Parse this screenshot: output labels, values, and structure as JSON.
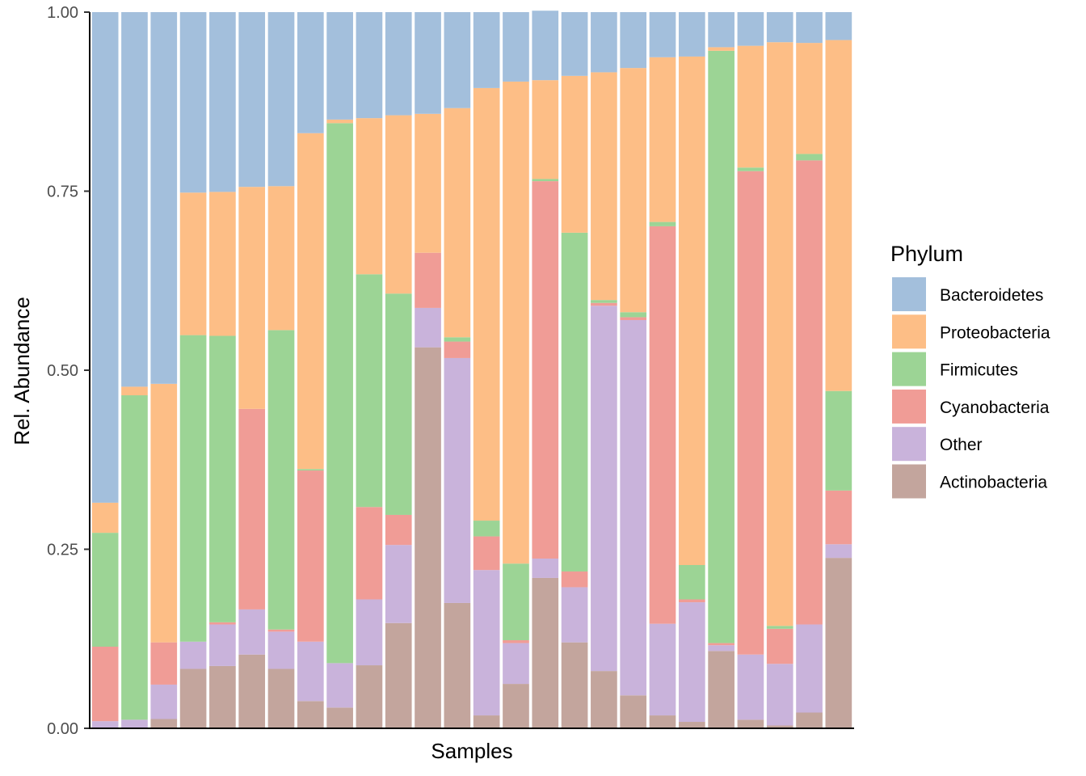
{
  "chart_data": {
    "type": "bar",
    "stacked": true,
    "title": "",
    "xlabel": "Samples",
    "ylabel": "Rel. Abundance",
    "ylim": [
      0,
      1
    ],
    "yticks": [
      "0.00",
      "0.25",
      "0.50",
      "0.75",
      "1.00"
    ],
    "x_tick_labels_visible": false,
    "grid": false,
    "legend_title": "Phylum",
    "legend_position": "right",
    "stack_order_bottom_to_top": [
      "Actinobacteria",
      "Other",
      "Cyanobacteria",
      "Firmicutes",
      "Proteobacteria",
      "Bacteroidetes"
    ],
    "legend_order": [
      "Bacteroidetes",
      "Proteobacteria",
      "Firmicutes",
      "Cyanobacteria",
      "Other",
      "Actinobacteria"
    ],
    "colors": {
      "Bacteroidetes": "#a3bfdc",
      "Proteobacteria": "#fdbe86",
      "Firmicutes": "#9cd495",
      "Cyanobacteria": "#f09c96",
      "Other": "#c9b3db",
      "Actinobacteria": "#c3a59d"
    },
    "sample_count": 26,
    "series": [
      {
        "name": "Actinobacteria",
        "values": [
          0.0,
          0.0,
          0.013,
          0.083,
          0.087,
          0.103,
          0.083,
          0.038,
          0.029,
          0.088,
          0.147,
          0.532,
          0.175,
          0.018,
          0.062,
          0.21,
          0.12,
          0.08,
          0.046,
          0.018,
          0.009,
          0.108,
          0.012,
          0.004,
          0.022,
          0.238
        ]
      },
      {
        "name": "Other",
        "values": [
          0.01,
          0.012,
          0.048,
          0.038,
          0.058,
          0.063,
          0.052,
          0.083,
          0.062,
          0.092,
          0.109,
          0.055,
          0.342,
          0.203,
          0.057,
          0.027,
          0.077,
          0.51,
          0.524,
          0.128,
          0.167,
          0.008,
          0.091,
          0.086,
          0.123,
          0.019
        ]
      },
      {
        "name": "Cyanobacteria",
        "values": [
          0.104,
          0.0,
          0.059,
          0.0,
          0.003,
          0.28,
          0.003,
          0.239,
          0.0,
          0.129,
          0.042,
          0.077,
          0.023,
          0.047,
          0.004,
          0.527,
          0.022,
          0.004,
          0.004,
          0.555,
          0.004,
          0.003,
          0.675,
          0.049,
          0.648,
          0.075
        ]
      },
      {
        "name": "Firmicutes",
        "values": [
          0.159,
          0.453,
          0.0,
          0.428,
          0.4,
          0.0,
          0.418,
          0.002,
          0.754,
          0.325,
          0.309,
          0.0,
          0.006,
          0.022,
          0.107,
          0.003,
          0.473,
          0.004,
          0.007,
          0.006,
          0.048,
          0.827,
          0.005,
          0.004,
          0.009,
          0.139
        ]
      },
      {
        "name": "Proteobacteria",
        "values": [
          0.042,
          0.012,
          0.361,
          0.199,
          0.201,
          0.31,
          0.201,
          0.469,
          0.005,
          0.218,
          0.249,
          0.194,
          0.32,
          0.604,
          0.673,
          0.138,
          0.219,
          0.318,
          0.341,
          0.23,
          0.71,
          0.005,
          0.17,
          0.815,
          0.155,
          0.49
        ]
      },
      {
        "name": "Bacteroidetes",
        "values": [
          0.685,
          0.523,
          0.519,
          0.252,
          0.251,
          0.244,
          0.243,
          0.169,
          0.15,
          0.148,
          0.144,
          0.142,
          0.134,
          0.106,
          0.097,
          0.097,
          0.089,
          0.084,
          0.078,
          0.063,
          0.062,
          0.049,
          0.047,
          0.042,
          0.043,
          0.039
        ]
      }
    ]
  }
}
